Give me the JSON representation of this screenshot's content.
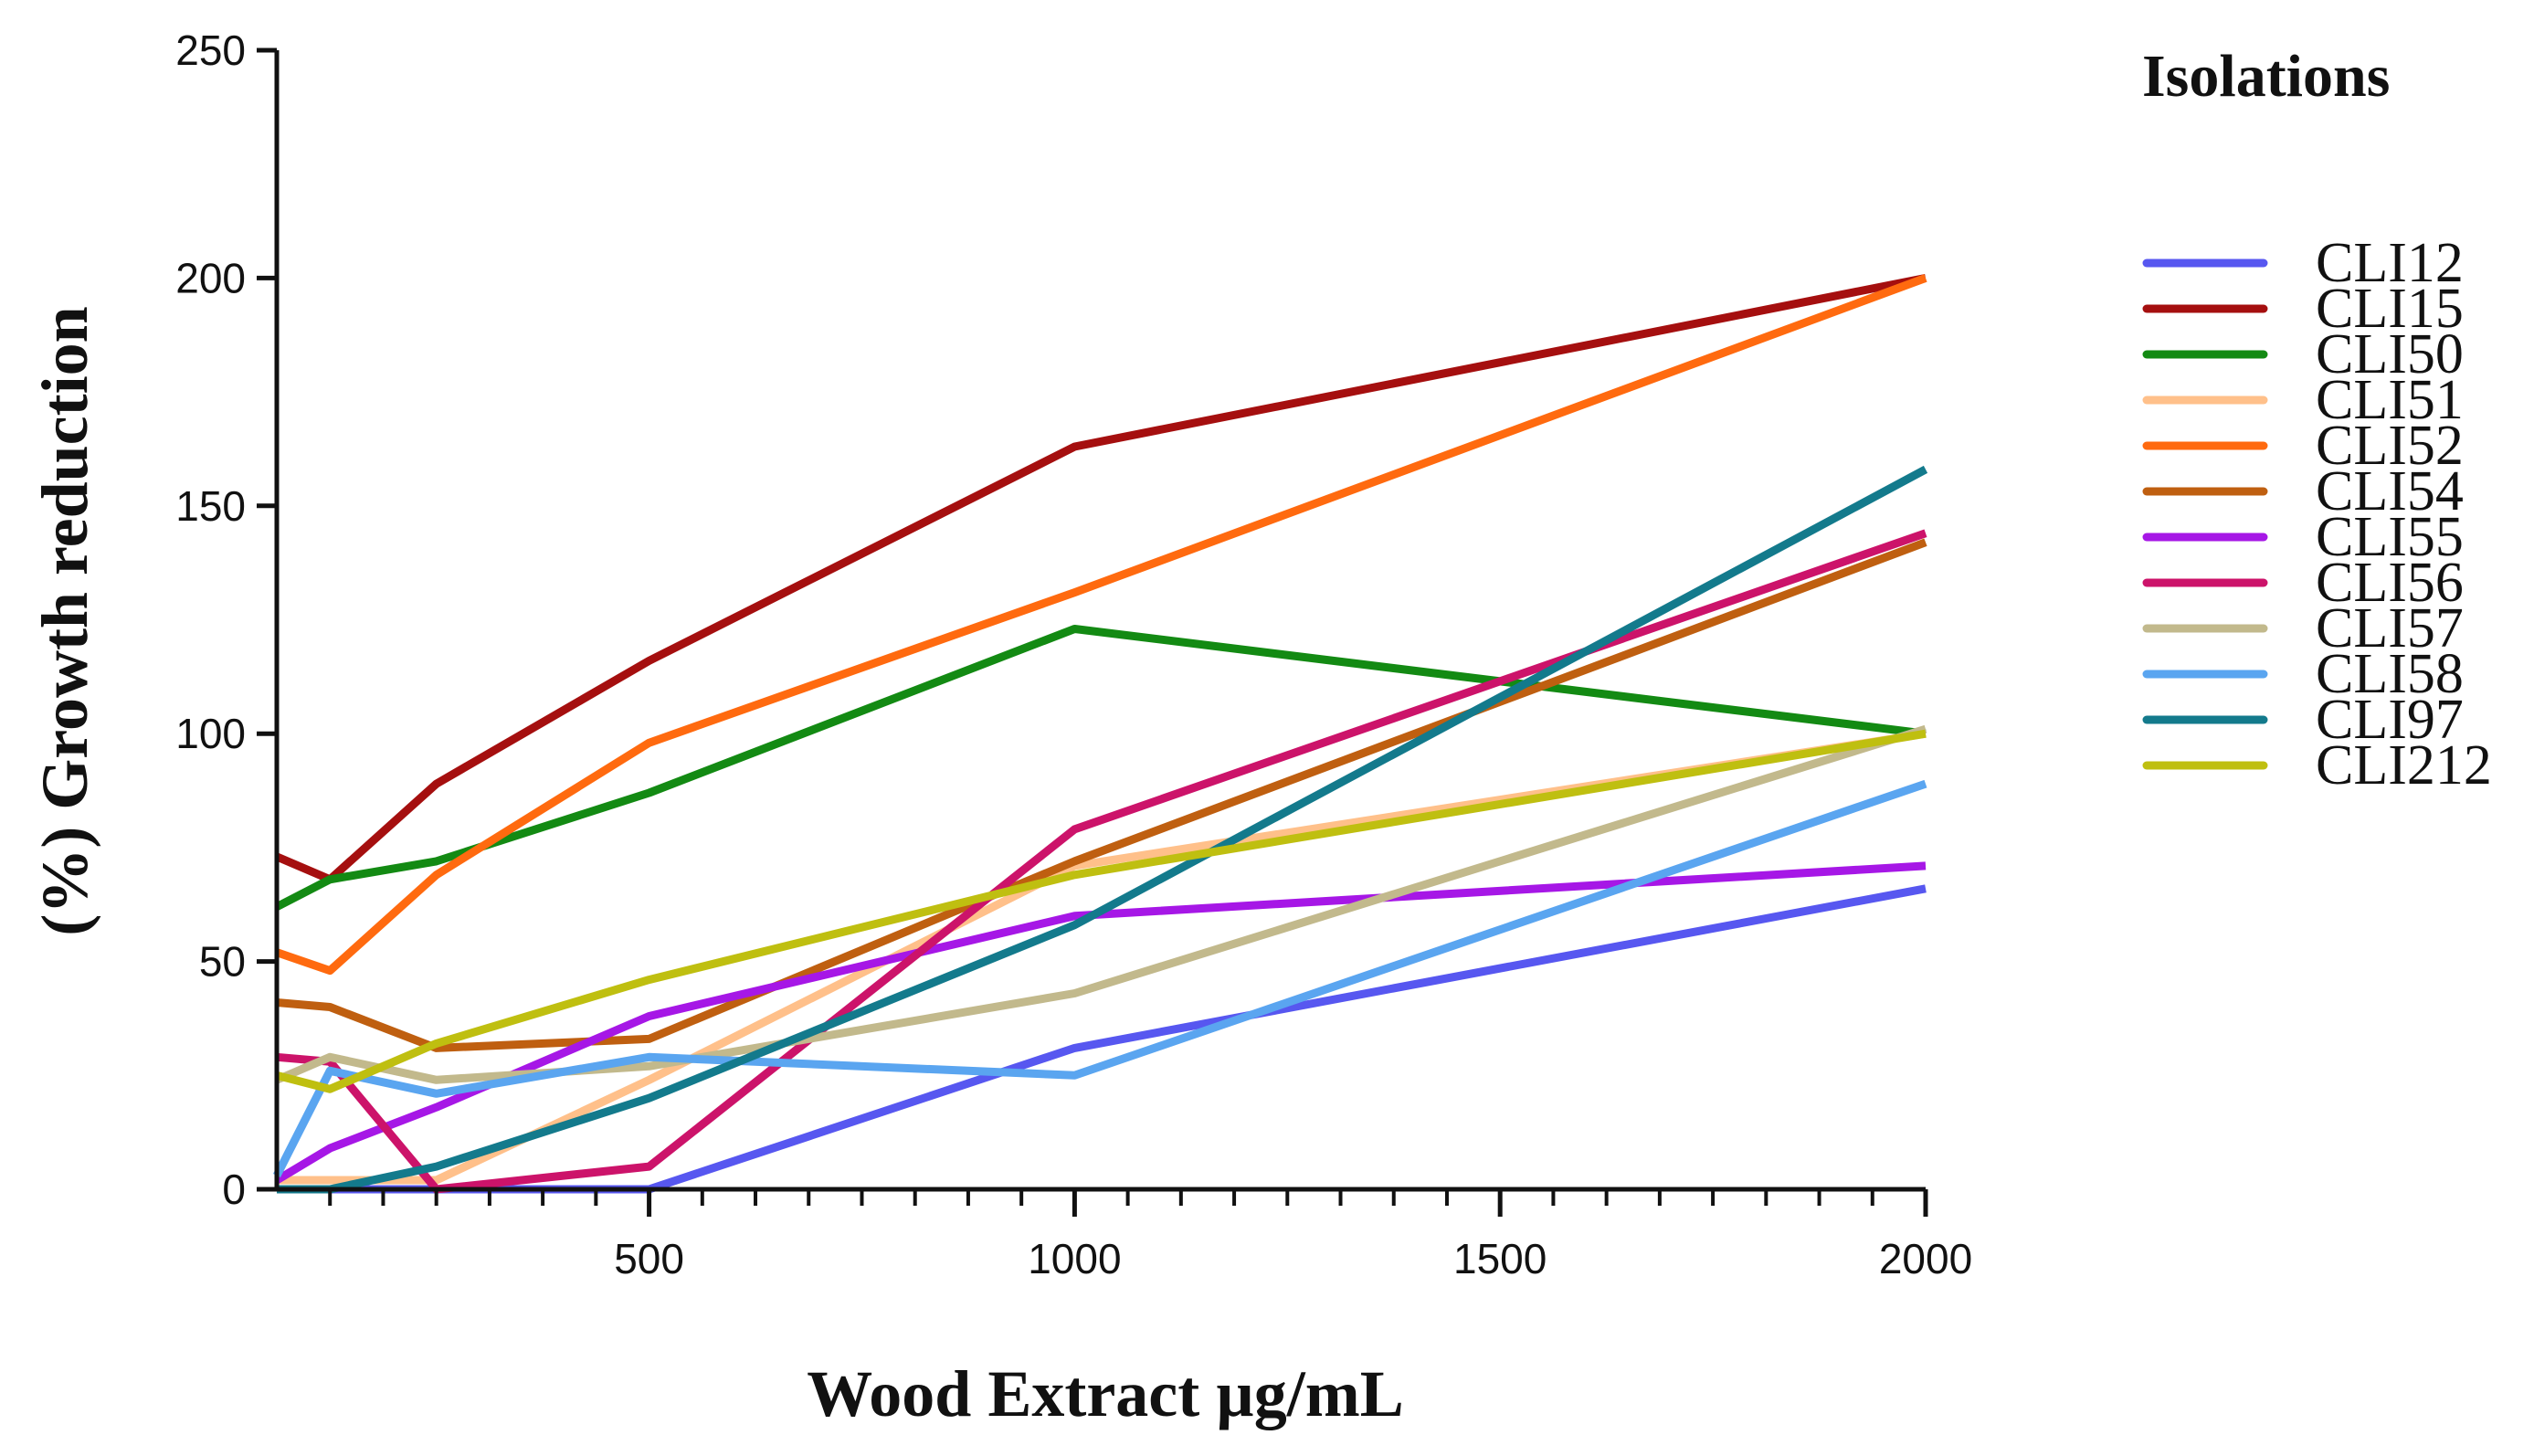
{
  "chart_data": {
    "type": "line",
    "xlabel": "Wood Extract µg/mL",
    "ylabel": "(%) Growth reduction",
    "xlim": [
      62.5,
      2000
    ],
    "ylim": [
      0,
      250
    ],
    "x_ticks": [
      500,
      1000,
      1500,
      2000
    ],
    "y_ticks": [
      0,
      50,
      100,
      150,
      200,
      250
    ],
    "x_minor_step": 62.5,
    "legend_title": "Isolations",
    "legend_position": "right",
    "x": [
      62.5,
      125,
      250,
      500,
      1000,
      2000
    ],
    "series": [
      {
        "name": "CLI12",
        "color": "#5757F0",
        "values": [
          0,
          0,
          0,
          0,
          31,
          66
        ]
      },
      {
        "name": "CLI15",
        "color": "#A50F0F",
        "values": [
          73,
          68,
          89,
          116,
          163,
          200
        ]
      },
      {
        "name": "CLI50",
        "color": "#138A13",
        "values": [
          62,
          68,
          72,
          87,
          123,
          100
        ]
      },
      {
        "name": "CLI51",
        "color": "#FFC08A",
        "values": [
          2,
          2,
          2,
          24,
          71,
          100
        ]
      },
      {
        "name": "CLI52",
        "color": "#FF6A0F",
        "values": [
          52,
          48,
          69,
          98,
          131,
          200
        ]
      },
      {
        "name": "CLI54",
        "color": "#BF5F10",
        "values": [
          41,
          40,
          31,
          33,
          72,
          142
        ]
      },
      {
        "name": "CLI55",
        "color": "#A617E6",
        "values": [
          2,
          9,
          18,
          38,
          60,
          71
        ]
      },
      {
        "name": "CLI56",
        "color": "#CC136A",
        "values": [
          29,
          28,
          0,
          5,
          79,
          144
        ]
      },
      {
        "name": "CLI57",
        "color": "#C2B98C",
        "values": [
          24,
          29,
          24,
          27,
          43,
          101
        ]
      },
      {
        "name": "CLI58",
        "color": "#5AA5F0",
        "values": [
          3,
          26,
          21,
          29,
          25,
          89
        ]
      },
      {
        "name": "CLI97",
        "color": "#137A8C",
        "values": [
          0,
          0,
          5,
          20,
          58,
          158
        ]
      },
      {
        "name": "CLI212",
        "color": "#BFBF10",
        "values": [
          25,
          22,
          32,
          46,
          69,
          100
        ]
      }
    ]
  }
}
